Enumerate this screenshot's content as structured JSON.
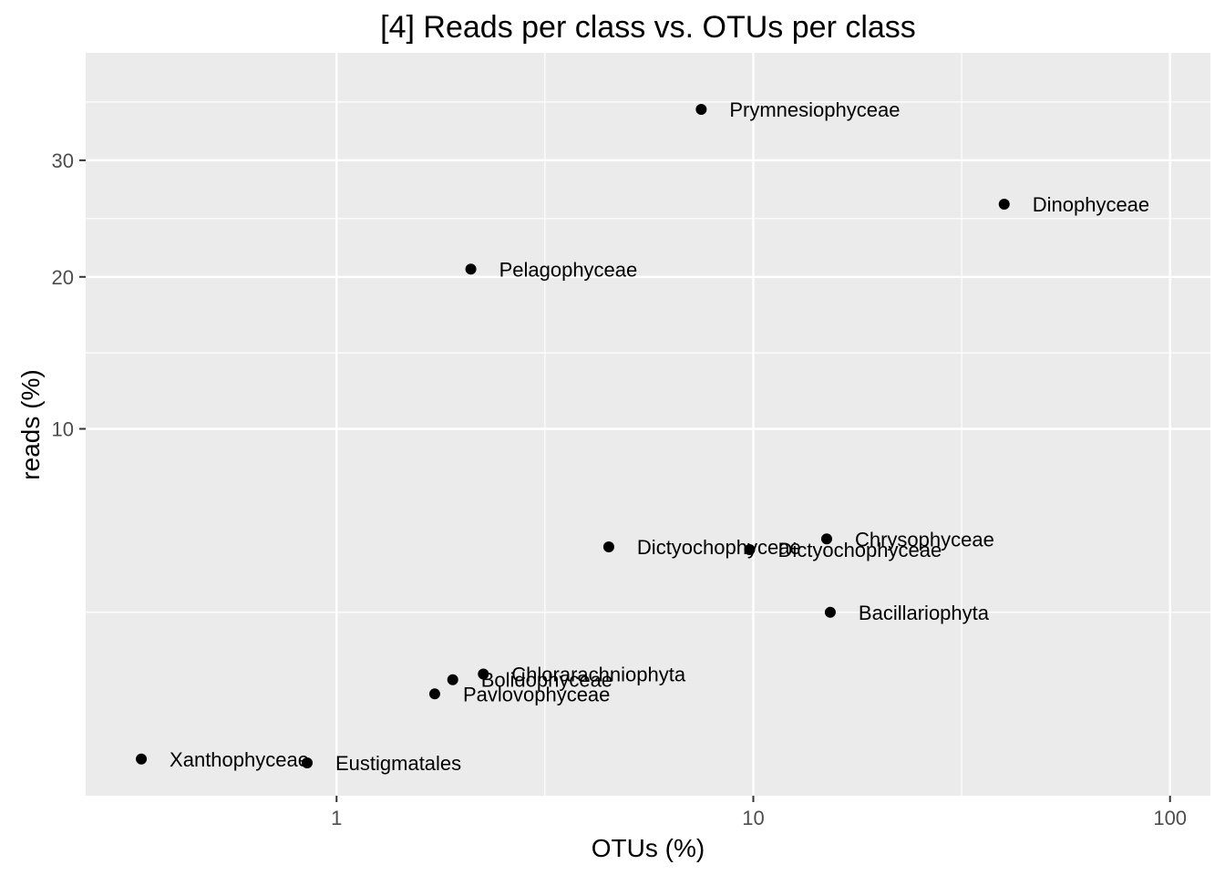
{
  "chart_data": {
    "type": "scatter",
    "title": "[4] Reads per class vs. OTUs per class",
    "xlabel": "OTUs (%)",
    "ylabel": "reads (%)",
    "x_scale": "log10",
    "y_scale": "sqrt",
    "xlim": [
      0.25,
      125
    ],
    "ylim": [
      0,
      41
    ],
    "x_ticks": [
      1,
      10,
      100
    ],
    "x_tick_labels": [
      "1",
      "10",
      "100"
    ],
    "y_ticks": [
      10,
      20,
      30
    ],
    "y_tick_labels": [
      "10",
      "20",
      "30"
    ],
    "grid": true,
    "legend": "none",
    "points": [
      {
        "label": "Prymnesiophyceae",
        "x": 7.5,
        "y": 35.0
      },
      {
        "label": "Dinophyceae",
        "x": 40.0,
        "y": 26.0
      },
      {
        "label": "Pelagophyceae",
        "x": 2.1,
        "y": 20.6
      },
      {
        "label": "Dictyochophyceae",
        "x": 4.5,
        "y": 4.6
      },
      {
        "label": "Dictyochophyceae",
        "x": 9.8,
        "y": 4.5
      },
      {
        "label": "Chrysophyceae",
        "x": 15.0,
        "y": 4.9
      },
      {
        "label": "Bacillariophyta",
        "x": 15.3,
        "y": 2.5
      },
      {
        "label": "Chlorarachniophyta",
        "x": 2.25,
        "y": 1.1
      },
      {
        "label": "Bolidophyceae",
        "x": 1.9,
        "y": 1.0
      },
      {
        "label": "Pavlovophyceae",
        "x": 1.72,
        "y": 0.77
      },
      {
        "label": "Xanthophyceae",
        "x": 0.34,
        "y": 0.1
      },
      {
        "label": "Eustigmatales",
        "x": 0.85,
        "y": 0.08
      }
    ],
    "colors": {
      "panel": "#ebebeb",
      "grid": "#ffffff",
      "point": "#000000"
    }
  }
}
